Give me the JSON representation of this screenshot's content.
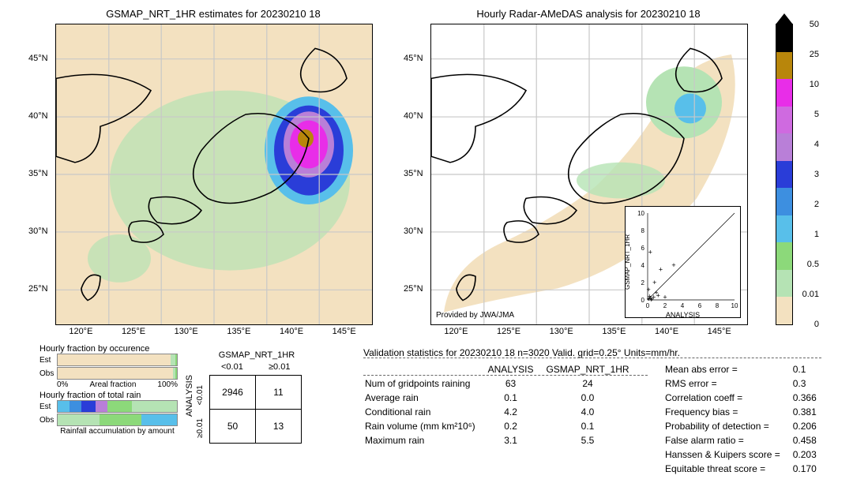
{
  "titles": {
    "left": "GSMAP_NRT_1HR estimates for 20230210 18",
    "right": "Hourly Radar-AMeDAS analysis for 20230210 18"
  },
  "map": {
    "xlim": [
      120,
      150
    ],
    "ylim": [
      22,
      48
    ],
    "xticks": [
      "120°E",
      "125°E",
      "130°E",
      "135°E",
      "140°E",
      "145°E"
    ],
    "yticks": [
      "25°N",
      "30°N",
      "35°N",
      "40°N",
      "45°N"
    ],
    "credit": "Provided by JWA/JMA",
    "bg_color": "#f3e1c0",
    "land_color": "#ffffff",
    "grid_color": "#c8c8c8",
    "precip_colors": {
      "light": "#b5e3b4",
      "mod": "#58bfea",
      "heavy_blue": "#2a3dd8",
      "purple": "#b97fd8",
      "magenta": "#e82de8",
      "core": "#b8860b"
    }
  },
  "colorbar": {
    "ticks": [
      "50",
      "25",
      "10",
      "5",
      "4",
      "3",
      "2",
      "1",
      "0.5",
      "0.01",
      "0"
    ],
    "colors": [
      "#000000",
      "#b8860b",
      "#e82de8",
      "#cf6ae0",
      "#b97fd8",
      "#2a3dd8",
      "#3d8fe0",
      "#58bfea",
      "#8cd97a",
      "#b5e3b4",
      "#f3e1c0"
    ]
  },
  "bars": {
    "section1_title": "Hourly fraction by occurence",
    "section2_title": "Hourly fraction of total rain",
    "footer": "Rainfall accumulation by amount",
    "row_labels": [
      "Est",
      "Obs"
    ],
    "xaxis": [
      "0%",
      "Areal fraction",
      "100%"
    ],
    "occurrence_est": [
      {
        "c": "#f3e1c0",
        "w": 0.95
      },
      {
        "c": "#b5e3b4",
        "w": 0.04
      },
      {
        "c": "#8cd97a",
        "w": 0.01
      }
    ],
    "occurrence_obs": [
      {
        "c": "#f3e1c0",
        "w": 0.97
      },
      {
        "c": "#b5e3b4",
        "w": 0.02
      },
      {
        "c": "#8cd97a",
        "w": 0.01
      }
    ],
    "total_est": [
      {
        "c": "#58bfea",
        "w": 0.1
      },
      {
        "c": "#3d8fe0",
        "w": 0.1
      },
      {
        "c": "#2a3dd8",
        "w": 0.12
      },
      {
        "c": "#b97fd8",
        "w": 0.1
      },
      {
        "c": "#8cd97a",
        "w": 0.2
      },
      {
        "c": "#b5e3b4",
        "w": 0.38
      }
    ],
    "total_obs": [
      {
        "c": "#b5e3b4",
        "w": 0.35
      },
      {
        "c": "#8cd97a",
        "w": 0.35
      },
      {
        "c": "#58bfea",
        "w": 0.3
      }
    ]
  },
  "contingency": {
    "col_header": "GSMAP_NRT_1HR",
    "row_header": "ANALYSIS",
    "col_labels": [
      "<0.01",
      "≥0.01"
    ],
    "row_labels": [
      "<0.01",
      "≥0.01"
    ],
    "cells": [
      [
        2946,
        11
      ],
      [
        50,
        13
      ]
    ]
  },
  "validation_header": "Validation statistics for 20230210 18  n=3020 Valid. grid=0.25°  Units=mm/hr.",
  "comparison": {
    "cols": [
      "ANALYSIS",
      "GSMAP_NRT_1HR"
    ],
    "rows": [
      {
        "k": "Num of gridpoints raining",
        "a": "63",
        "b": "24"
      },
      {
        "k": "Average rain",
        "a": "0.1",
        "b": "0.0"
      },
      {
        "k": "Conditional rain",
        "a": "4.2",
        "b": "4.0"
      },
      {
        "k": "Rain volume (mm km²10⁶)",
        "a": "0.2",
        "b": "0.1"
      },
      {
        "k": "Maximum rain",
        "a": "3.1",
        "b": "5.5"
      }
    ]
  },
  "metrics": [
    {
      "k": "Mean abs error =",
      "v": "0.1"
    },
    {
      "k": "RMS error =",
      "v": "0.3"
    },
    {
      "k": "Correlation coeff =",
      "v": "0.366"
    },
    {
      "k": "Frequency bias =",
      "v": "0.381"
    },
    {
      "k": "Probability of detection =",
      "v": "0.206"
    },
    {
      "k": "False alarm ratio =",
      "v": "0.458"
    },
    {
      "k": "Hanssen & Kuipers score =",
      "v": "0.203"
    },
    {
      "k": "Equitable threat score =",
      "v": "0.170"
    }
  ],
  "scatter": {
    "xlabel": "ANALYSIS",
    "ylabel": "GSMAP_NRT_1HR",
    "xlim": [
      0,
      10
    ],
    "ylim": [
      0,
      10
    ],
    "ticks": [
      "0",
      "2",
      "4",
      "6",
      "8",
      "10"
    ],
    "points": [
      [
        0.1,
        0.1
      ],
      [
        0.3,
        0.2
      ],
      [
        0.5,
        0.1
      ],
      [
        0.2,
        0.4
      ],
      [
        0.7,
        0.3
      ],
      [
        1.0,
        0.8
      ],
      [
        0.4,
        0.0
      ],
      [
        1.2,
        0.5
      ],
      [
        2.0,
        0.3
      ],
      [
        0.8,
        2.0
      ],
      [
        3.0,
        4.0
      ],
      [
        1.5,
        3.5
      ],
      [
        0.3,
        5.5
      ],
      [
        0.1,
        1.2
      ]
    ]
  }
}
